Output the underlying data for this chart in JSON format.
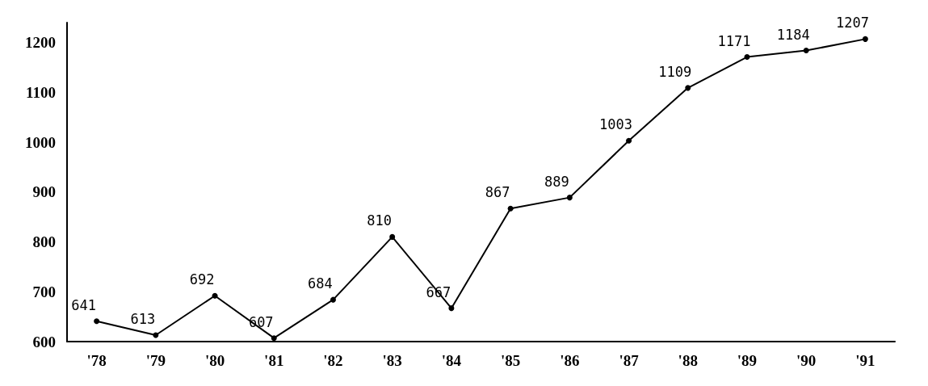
{
  "chart_data": {
    "type": "line",
    "categories": [
      "'78",
      "'79",
      "'80",
      "'81",
      "'82",
      "'83",
      "'84",
      "'85",
      "'86",
      "'87",
      "'88",
      "'89",
      "'90",
      "'91"
    ],
    "series": [
      {
        "color": "#000000",
        "values": [
          641,
          613,
          692,
          607,
          684,
          810,
          667,
          867,
          889,
          1003,
          1109,
          1171,
          1184,
          1207
        ]
      }
    ],
    "ylim": [
      600,
      1240
    ],
    "yticks": [
      600,
      700,
      800,
      900,
      1000,
      1100,
      1200
    ],
    "grid": false,
    "marker": "circle",
    "line_style": "solid",
    "data_labels": true
  }
}
